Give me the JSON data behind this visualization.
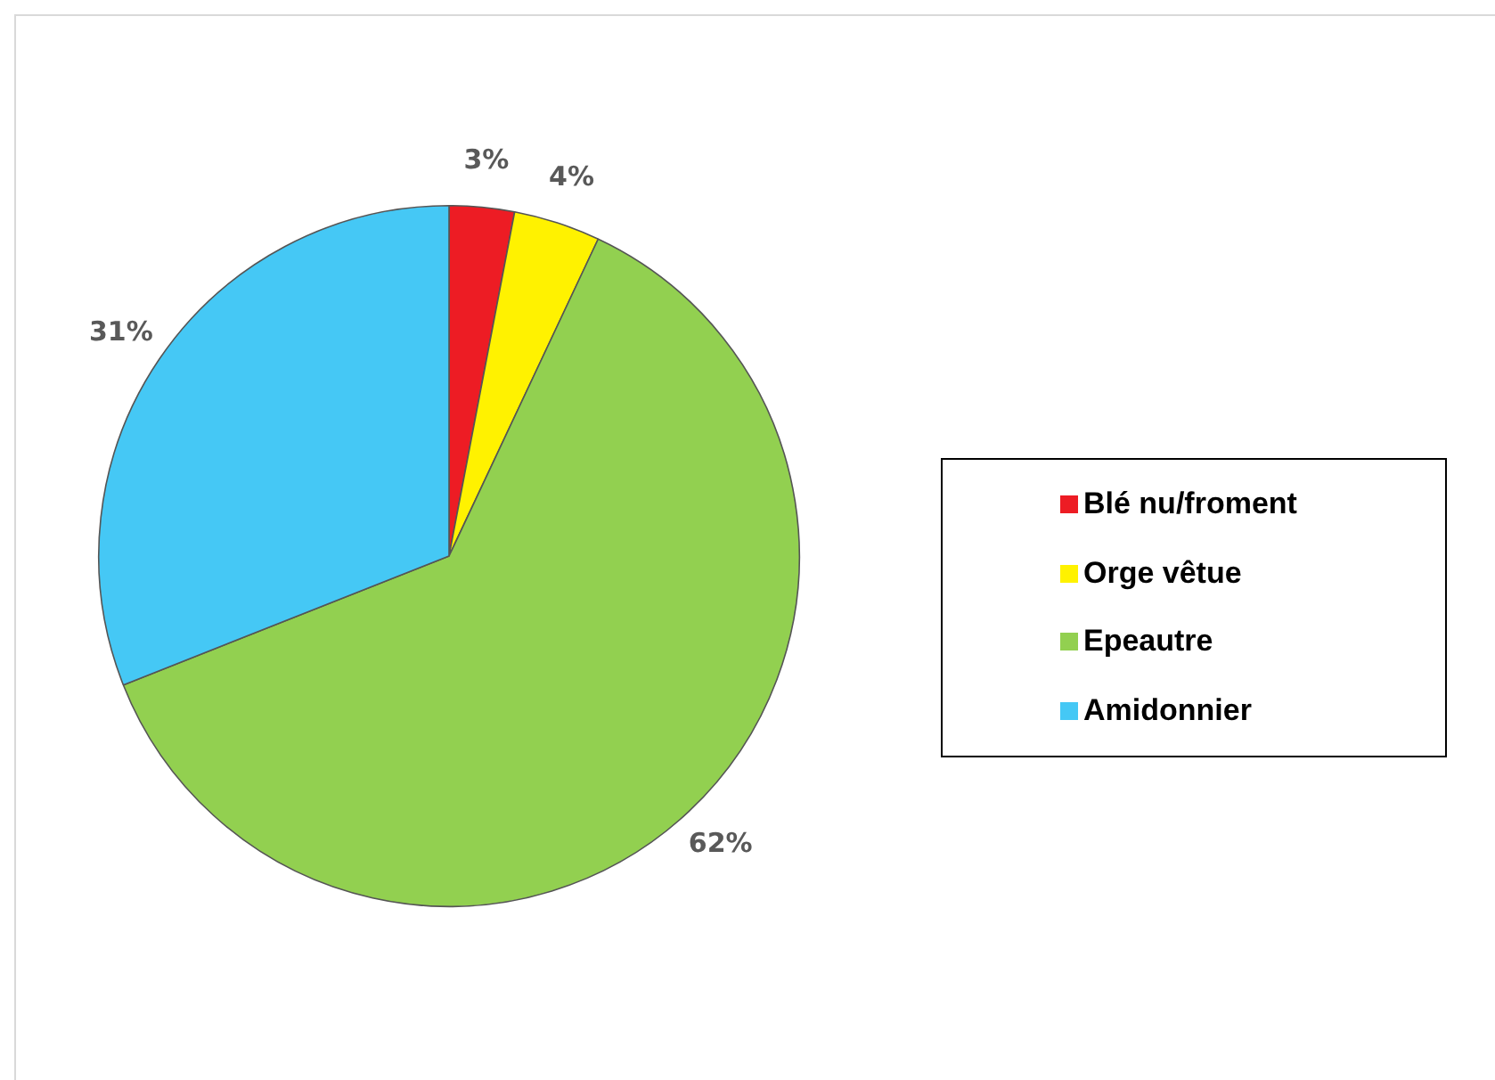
{
  "chart_data": {
    "type": "pie",
    "categories": [
      "Blé nu/froment",
      "Orge vêtue",
      "Epeautre",
      "Amidonnier"
    ],
    "values": [
      3,
      4,
      62,
      31
    ],
    "colors": [
      "#ed1c24",
      "#fff200",
      "#92d050",
      "#45c8f5"
    ],
    "value_labels": [
      "3%",
      "4%",
      "62%",
      "31%"
    ],
    "legend": "right"
  }
}
